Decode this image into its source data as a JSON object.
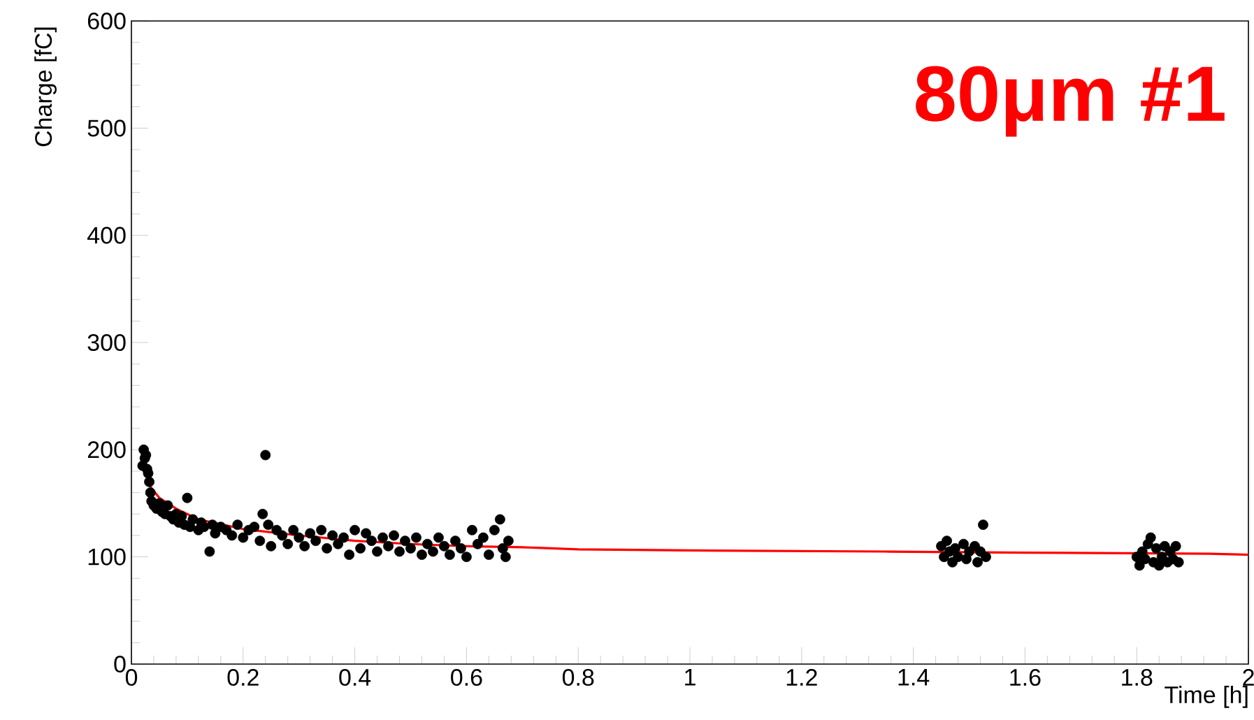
{
  "chart_data": {
    "type": "scatter",
    "xlabel": "Time [h]",
    "ylabel": "Charge [fC]",
    "annotations": [
      "80μm #1"
    ],
    "xlim": [
      0,
      2
    ],
    "ylim": [
      0,
      600
    ],
    "xticks": [
      0,
      0.2,
      0.4,
      0.6,
      0.8,
      1,
      1.2,
      1.4,
      1.6,
      1.8,
      2
    ],
    "yticks": [
      0,
      100,
      200,
      300,
      400,
      500,
      600
    ],
    "grid": false,
    "series": [
      {
        "marker": "circle",
        "color": "#000000",
        "x": [
          0.02,
          0.022,
          0.024,
          0.026,
          0.028,
          0.03,
          0.032,
          0.034,
          0.036,
          0.04,
          0.045,
          0.05,
          0.055,
          0.06,
          0.065,
          0.07,
          0.075,
          0.08,
          0.085,
          0.09,
          0.095,
          0.1,
          0.105,
          0.11,
          0.12,
          0.125,
          0.13,
          0.14,
          0.145,
          0.15,
          0.16,
          0.17,
          0.18,
          0.19,
          0.2,
          0.21,
          0.22,
          0.23,
          0.235,
          0.24,
          0.245,
          0.25,
          0.26,
          0.27,
          0.28,
          0.29,
          0.3,
          0.31,
          0.32,
          0.33,
          0.34,
          0.35,
          0.36,
          0.37,
          0.38,
          0.39,
          0.4,
          0.41,
          0.42,
          0.43,
          0.44,
          0.45,
          0.46,
          0.47,
          0.48,
          0.49,
          0.5,
          0.51,
          0.52,
          0.53,
          0.54,
          0.55,
          0.56,
          0.57,
          0.58,
          0.59,
          0.6,
          0.61,
          0.62,
          0.63,
          0.64,
          0.65,
          0.66,
          0.665,
          0.67,
          0.675,
          1.45,
          1.455,
          1.46,
          1.465,
          1.47,
          1.475,
          1.48,
          1.49,
          1.495,
          1.5,
          1.51,
          1.515,
          1.52,
          1.525,
          1.53,
          1.8,
          1.805,
          1.81,
          1.815,
          1.82,
          1.825,
          1.83,
          1.835,
          1.84,
          1.845,
          1.85,
          1.855,
          1.86,
          1.865,
          1.87,
          1.875
        ],
        "values": [
          185,
          200,
          192,
          195,
          182,
          178,
          170,
          160,
          152,
          148,
          145,
          150,
          142,
          140,
          148,
          138,
          135,
          140,
          132,
          138,
          130,
          155,
          128,
          135,
          125,
          132,
          128,
          105,
          130,
          122,
          128,
          125,
          120,
          130,
          118,
          125,
          128,
          115,
          140,
          195,
          130,
          110,
          125,
          120,
          112,
          125,
          118,
          110,
          122,
          115,
          125,
          108,
          120,
          112,
          118,
          102,
          125,
          108,
          122,
          115,
          105,
          118,
          110,
          120,
          105,
          115,
          108,
          118,
          102,
          112,
          105,
          118,
          110,
          102,
          115,
          108,
          100,
          125,
          112,
          118,
          102,
          125,
          135,
          108,
          100,
          115,
          110,
          100,
          115,
          105,
          95,
          108,
          100,
          112,
          98,
          105,
          110,
          95,
          105,
          130,
          100,
          100,
          92,
          105,
          98,
          112,
          118,
          95,
          108,
          92,
          100,
          110,
          95,
          105,
          98,
          110,
          95
        ]
      },
      {
        "type": "line",
        "marker": "none",
        "color": "#ff0000",
        "x": [
          0.03,
          0.05,
          0.08,
          0.12,
          0.2,
          0.3,
          0.4,
          0.5,
          0.6,
          0.7,
          0.8,
          1.0,
          1.35,
          1.6,
          1.93,
          2.0
        ],
        "values": [
          168,
          155,
          145,
          135,
          126,
          120,
          115,
          112,
          110,
          109,
          107,
          106,
          105,
          104,
          103,
          102
        ]
      }
    ]
  }
}
